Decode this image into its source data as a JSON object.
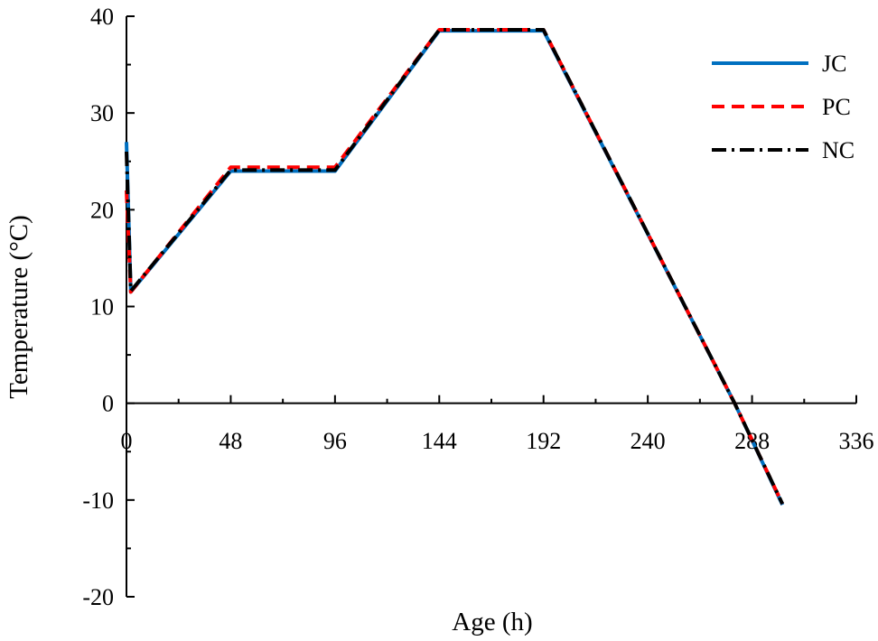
{
  "chart_data": {
    "type": "line",
    "title": "",
    "xlabel": "Age (h)",
    "ylabel": "Temperature (°C)",
    "xlim": [
      0,
      336
    ],
    "ylim": [
      -20,
      40
    ],
    "x_ticks": [
      0,
      48,
      96,
      144,
      192,
      240,
      288,
      336
    ],
    "y_ticks": [
      -20,
      -10,
      0,
      10,
      20,
      30,
      40
    ],
    "x_tick_labels": [
      "0",
      "48",
      "96",
      "144",
      "192",
      "240",
      "288",
      "336"
    ],
    "y_tick_labels": [
      "-20",
      "-10",
      "0",
      "10",
      "20",
      "30",
      "40"
    ],
    "grid": false,
    "legend_position": "top-right",
    "series": [
      {
        "name": "JC",
        "color": "#0070C0",
        "dash": "solid",
        "x": [
          0,
          2,
          48,
          96,
          144,
          192,
          280,
          302
        ],
        "y": [
          27,
          11.5,
          24,
          24,
          38.5,
          38.5,
          0,
          -10.5
        ]
      },
      {
        "name": "PC",
        "color": "#FF0000",
        "dash": "dashed",
        "x": [
          0,
          2,
          48,
          96,
          144,
          192,
          280,
          302
        ],
        "y": [
          22,
          11.5,
          24.4,
          24.4,
          38.6,
          38.6,
          0,
          -10.4
        ]
      },
      {
        "name": "NC",
        "color": "#000000",
        "dash": "dash-dot",
        "x": [
          0,
          2,
          48,
          96,
          144,
          192,
          280,
          302
        ],
        "y": [
          26,
          11.6,
          24.1,
          24.1,
          38.6,
          38.6,
          0,
          -10.4
        ]
      }
    ]
  }
}
